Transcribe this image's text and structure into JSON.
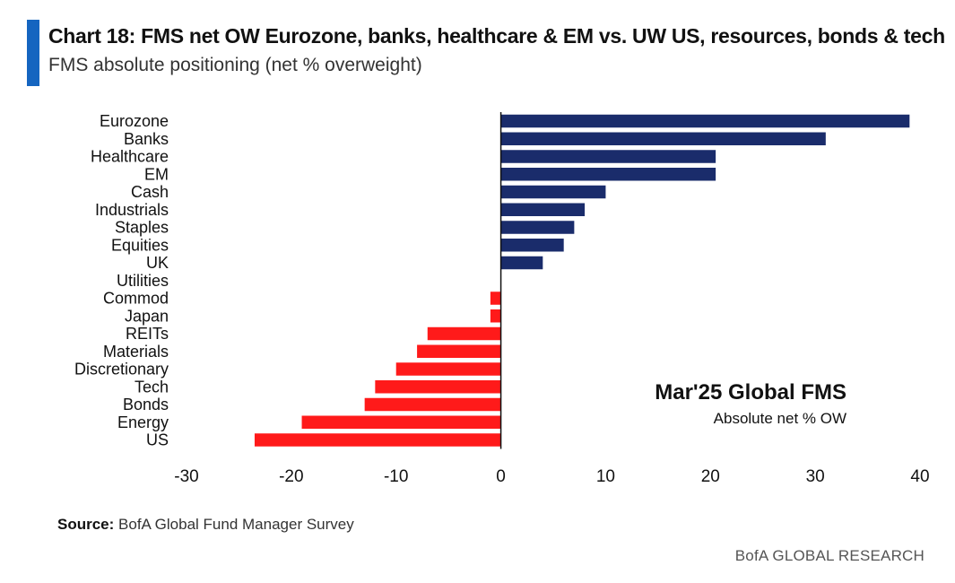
{
  "header": {
    "title": "Chart 18: FMS net OW Eurozone, banks, healthcare & EM vs. UW US, resources, bonds & tech",
    "subtitle": "FMS absolute positioning (net % overweight)"
  },
  "footer": {
    "source_label": "Source:",
    "source_text": "BofA Global Fund Manager Survey",
    "brand": "BofA GLOBAL RESEARCH"
  },
  "colors": {
    "positive": "#1a2c6b",
    "negative": "#ff1a1a",
    "accent": "#1565c0"
  },
  "chart_data": {
    "type": "bar",
    "orientation": "horizontal",
    "categories": [
      "Eurozone",
      "Banks",
      "Healthcare",
      "EM",
      "Cash",
      "Industrials",
      "Staples",
      "Equities",
      "UK",
      "Utilities",
      "Commod",
      "Japan",
      "REITs",
      "Materials",
      "Discretionary",
      "Tech",
      "Bonds",
      "Energy",
      "US"
    ],
    "values": [
      39,
      31,
      20.5,
      20.5,
      10,
      8,
      7,
      6,
      4,
      0,
      -1,
      -1,
      -7,
      -8,
      -10,
      -12,
      -13,
      -19,
      -23.5
    ],
    "xlim": [
      -30,
      40
    ],
    "xticks": [
      -30,
      -20,
      -10,
      0,
      10,
      20,
      30,
      40
    ],
    "grid": false,
    "annotation": {
      "title": "Mar'25 Global FMS",
      "subtitle": "Absolute net % OW"
    }
  }
}
